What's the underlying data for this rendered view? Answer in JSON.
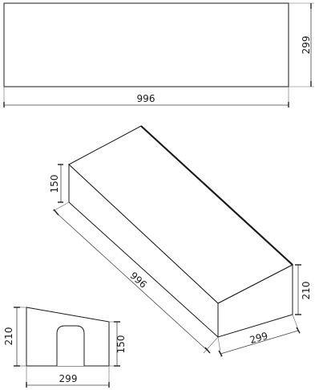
{
  "top_view": {
    "length_label": "996",
    "width_label": "299"
  },
  "iso_view": {
    "height_left_label": "150",
    "length_label": "996",
    "height_right_label": "210",
    "width_label": "299"
  },
  "end_view": {
    "tall_height_label": "210",
    "short_height_label": "150",
    "width_label": "299"
  }
}
